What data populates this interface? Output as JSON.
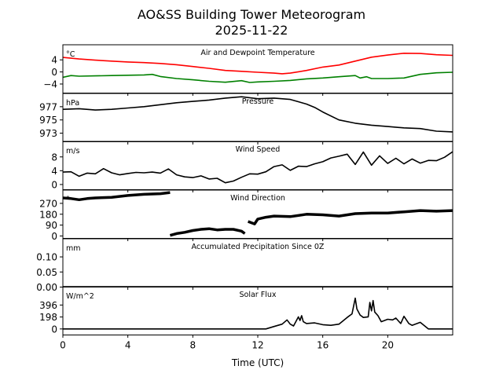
{
  "chart_data": {
    "type": "line",
    "title": "AO&SS Building Tower Meteorogram",
    "subtitle": "2025-11-22",
    "xlabel": "Time (UTC)",
    "xlim": [
      0,
      24
    ],
    "xticks": [
      0,
      4,
      8,
      12,
      16,
      20
    ],
    "xtick_labels": [
      "0",
      "4",
      "8",
      "12",
      "16",
      "20"
    ],
    "panels": [
      {
        "title": "Air and Dewpoint Temperature",
        "unit_label": "°C",
        "ylim": [
          -7,
          9
        ],
        "yticks": [
          -4,
          0,
          4
        ],
        "ytick_labels": [
          "−4",
          "0",
          "4"
        ],
        "series": [
          {
            "name": "Air Temperature",
            "color": "#ff0000",
            "x": [
              0,
              1,
              2,
              3,
              4,
              5,
              6,
              7,
              8,
              9,
              10,
              11,
              12,
              13,
              13.5,
              14,
              15,
              16,
              17,
              18,
              19,
              20,
              21,
              22,
              23,
              24
            ],
            "y": [
              4.8,
              4.3,
              3.9,
              3.6,
              3.3,
              3.1,
              2.8,
              2.4,
              1.8,
              1.2,
              0.5,
              0.2,
              -0.1,
              -0.4,
              -0.6,
              -0.4,
              0.5,
              1.6,
              2.3,
              3.6,
              4.9,
              5.6,
              6.2,
              6.1,
              5.7,
              5.5
            ]
          },
          {
            "name": "Dewpoint Temperature",
            "color": "#008000",
            "x": [
              0,
              0.5,
              1,
              2,
              3,
              4,
              5,
              5.5,
              6,
              7,
              8,
              9,
              10,
              11,
              11.5,
              12,
              13,
              14,
              15,
              16,
              17,
              18,
              18.3,
              18.7,
              19,
              20,
              21,
              22,
              23,
              24
            ],
            "y": [
              -1.8,
              -1.2,
              -1.4,
              -1.3,
              -1.2,
              -1.1,
              -1.0,
              -0.8,
              -1.5,
              -2.2,
              -2.6,
              -3.1,
              -3.4,
              -2.9,
              -3.5,
              -3.3,
              -3.1,
              -2.8,
              -2.3,
              -2.0,
              -1.6,
              -1.2,
              -2.0,
              -1.6,
              -2.2,
              -2.2,
              -2.0,
              -0.8,
              -0.3,
              -0.1
            ]
          }
        ]
      },
      {
        "title": "Pressure",
        "unit_label": "hPa",
        "ylim": [
          971.7,
          979.0
        ],
        "yticks": [
          973,
          975,
          977
        ],
        "ytick_labels": [
          "973",
          "975",
          "977"
        ],
        "series": [
          {
            "name": "Pressure",
            "color": "#000000",
            "x": [
              0,
              1,
              2,
              3,
              4,
              5,
              6,
              7,
              8,
              9,
              10,
              11,
              12,
              13,
              14,
              15,
              15.5,
              16,
              17,
              18,
              19,
              20,
              21,
              22,
              23,
              24
            ],
            "y": [
              976.6,
              976.7,
              976.5,
              976.6,
              976.8,
              977.0,
              977.3,
              977.6,
              977.8,
              978.0,
              978.3,
              978.5,
              978.2,
              978.3,
              978.1,
              977.4,
              976.9,
              976.2,
              975.0,
              974.5,
              974.2,
              974.0,
              973.8,
              973.7,
              973.3,
              973.2
            ]
          }
        ]
      },
      {
        "title": "Wind Speed",
        "unit_label": "m/s",
        "ylim": [
          -1.5,
          12.5
        ],
        "yticks": [
          0,
          4,
          8
        ],
        "ytick_labels": [
          "0",
          "4",
          "8"
        ],
        "series": [
          {
            "name": "Wind Speed",
            "color": "#000000",
            "x": [
              0,
              0.5,
              1,
              1.5,
              2,
              2.5,
              3,
              3.5,
              4,
              4.5,
              5,
              5.5,
              6,
              6.5,
              7,
              7.5,
              8,
              8.5,
              9,
              9.5,
              10,
              10.5,
              11,
              11.5,
              12,
              12.5,
              13,
              13.5,
              14,
              14.5,
              15,
              15.5,
              16,
              16.5,
              17,
              17.5,
              18,
              18.5,
              19,
              19.5,
              20,
              20.5,
              21,
              21.5,
              22,
              22.5,
              23,
              23.5,
              24
            ],
            "y": [
              3.6,
              3.7,
              2.4,
              3.3,
              3.1,
              4.6,
              3.4,
              2.8,
              3.2,
              3.5,
              3.4,
              3.6,
              3.3,
              4.5,
              2.8,
              2.2,
              2.0,
              2.5,
              1.6,
              1.8,
              0.5,
              1.0,
              2.1,
              3.1,
              3.0,
              3.7,
              5.2,
              5.7,
              4.1,
              5.3,
              5.2,
              6.0,
              6.6,
              7.7,
              8.2,
              8.8,
              5.8,
              9.4,
              5.6,
              8.3,
              6.1,
              7.6,
              6.0,
              7.4,
              6.2,
              7.0,
              6.9,
              7.9,
              9.5
            ]
          }
        ]
      },
      {
        "title": "Wind Direction",
        "unit_label": "°",
        "ylim": [
          -20,
          380
        ],
        "yticks": [
          0,
          90,
          180,
          270
        ],
        "ytick_labels": [
          "0",
          "90",
          "180",
          "270"
        ],
        "series": [
          {
            "name": "Wind Direction (segment 1)",
            "color": "#000000",
            "x": [
              0,
              0.5,
              1,
              1.5,
              2,
              3,
              4,
              5,
              6,
              6.6
            ],
            "y": [
              315,
              310,
              300,
              310,
              315,
              320,
              335,
              345,
              350,
              360
            ]
          },
          {
            "name": "Wind Direction (segment 2)",
            "color": "#000000",
            "x": [
              6.6,
              7,
              7.5,
              8,
              8.5,
              9,
              9.5,
              10,
              10.5,
              11,
              11.2
            ],
            "y": [
              5,
              20,
              30,
              45,
              55,
              60,
              50,
              55,
              55,
              40,
              20
            ]
          },
          {
            "name": "Wind Direction (segment 3)",
            "color": "#000000",
            "x": [
              11.4,
              11.8,
              12,
              12.5,
              13,
              14,
              15,
              16,
              17,
              18,
              19,
              20,
              21,
              22,
              23,
              24
            ],
            "y": [
              120,
              100,
              140,
              155,
              165,
              160,
              180,
              175,
              165,
              185,
              190,
              190,
              200,
              210,
              205,
              210
            ]
          }
        ]
      },
      {
        "title": "Accumulated Precipitation Since 0Z",
        "unit_label": "mm",
        "ylim": [
          0,
          0.16
        ],
        "yticks": [
          0.0,
          0.05,
          0.1
        ],
        "ytick_labels": [
          "0.00",
          "0.05",
          "0.10"
        ],
        "series": [
          {
            "name": "Accumulated Precipitation",
            "color": "#000000",
            "x": [
              0,
              24
            ],
            "y": [
              0,
              0
            ]
          }
        ]
      },
      {
        "title": "Solar Flux",
        "unit_label": "W/m^2",
        "ylim": [
          -100,
          700
        ],
        "yticks": [
          0,
          198,
          396
        ],
        "ytick_labels": [
          "0",
          "198",
          "396"
        ],
        "series": [
          {
            "name": "Solar Flux",
            "color": "#000000",
            "x": [
              0,
              12.5,
              13,
              13.5,
              13.8,
              14,
              14.2,
              14.5,
              14.6,
              14.7,
              14.8,
              15,
              15.5,
              16,
              16.5,
              17,
              17.5,
              17.8,
              18,
              18.1,
              18.3,
              18.5,
              18.8,
              18.9,
              19,
              19.1,
              19.2,
              19.4,
              19.6,
              20,
              20.3,
              20.5,
              20.8,
              21,
              21.3,
              21.5,
              22,
              22.5,
              24
            ],
            "y": [
              0,
              0,
              40,
              80,
              150,
              80,
              50,
              200,
              140,
              220,
              120,
              90,
              100,
              70,
              60,
              80,
              190,
              250,
              510,
              330,
              230,
              190,
              200,
              440,
              300,
              470,
              280,
              220,
              120,
              160,
              150,
              180,
              90,
              210,
              90,
              60,
              110,
              0,
              0
            ]
          }
        ]
      }
    ]
  }
}
